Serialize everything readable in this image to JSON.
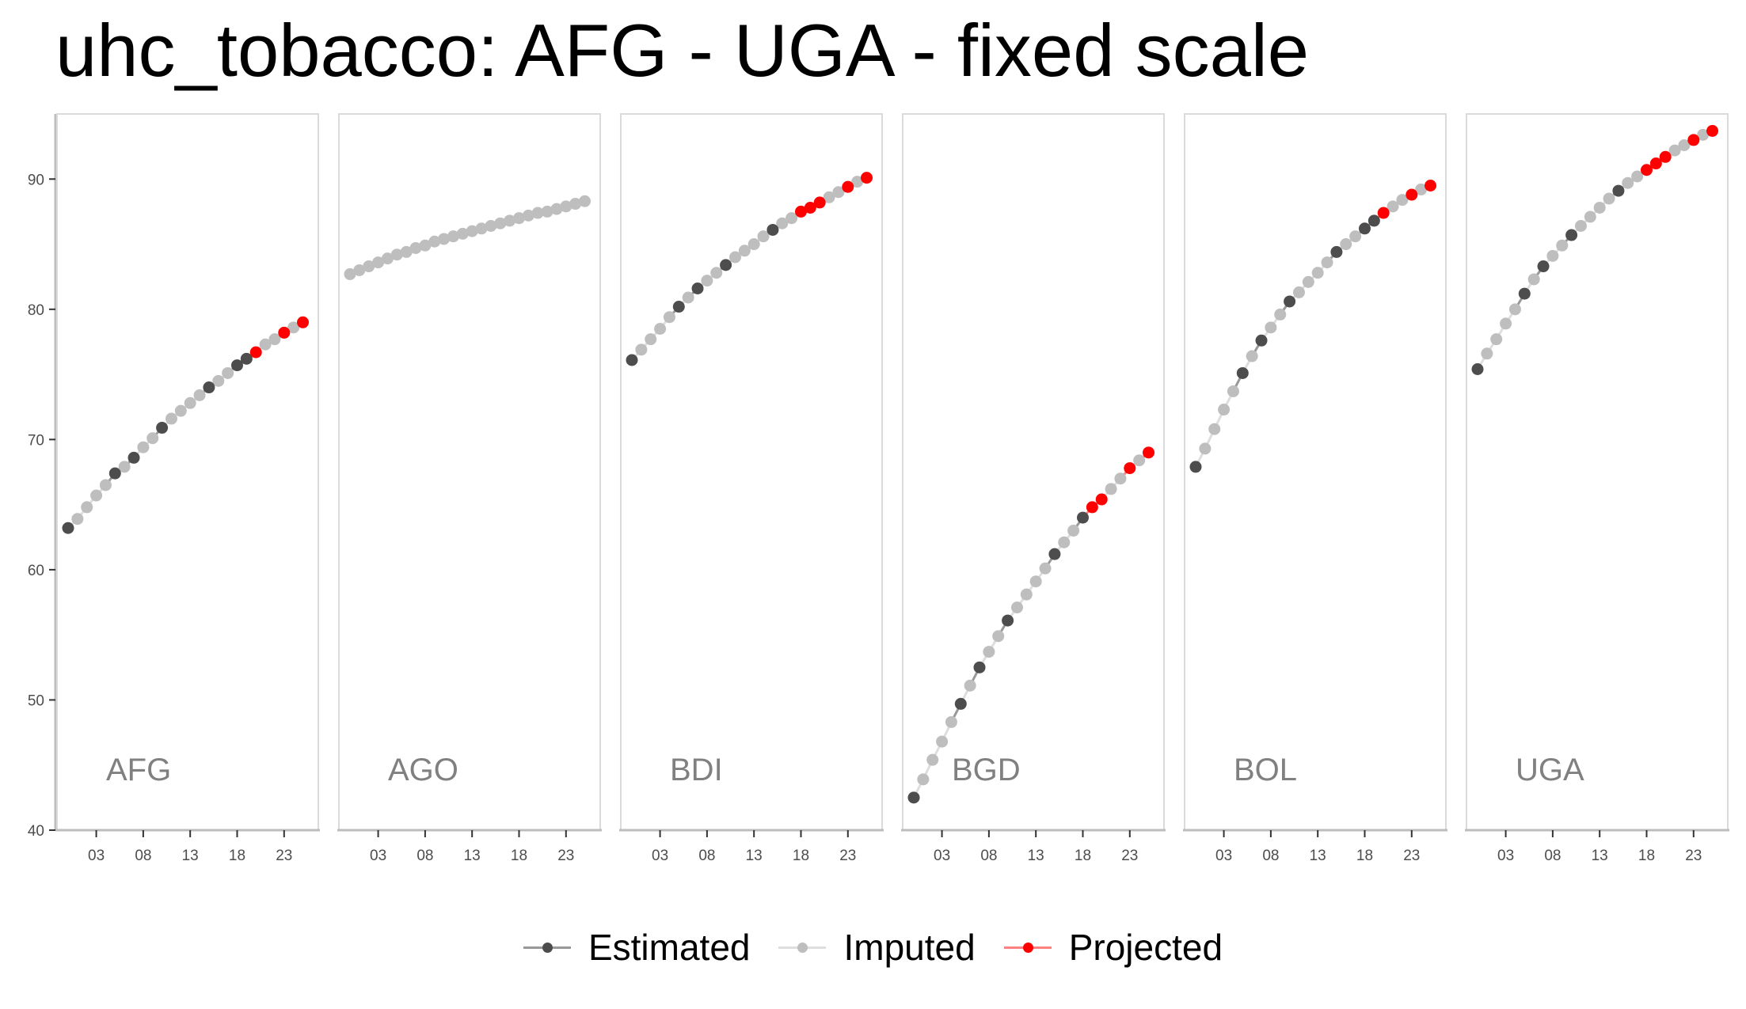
{
  "chart_data": {
    "type": "line",
    "title": "uhc_tobacco: AFG - UGA - fixed scale",
    "ylim": [
      40,
      95
    ],
    "yticks": [
      40,
      50,
      60,
      70,
      80,
      90
    ],
    "xlim": [
      2000,
      2025.8
    ],
    "xticks": [
      2003,
      2008,
      2013,
      2018,
      2023
    ],
    "xtick_labels": [
      "03",
      "08",
      "13",
      "18",
      "23"
    ],
    "grid": false,
    "legend_position": "bottom",
    "x": [
      2000,
      2001,
      2002,
      2003,
      2004,
      2005,
      2006,
      2007,
      2008,
      2009,
      2010,
      2011,
      2012,
      2013,
      2014,
      2015,
      2016,
      2017,
      2018,
      2019,
      2020,
      2021,
      2022,
      2023,
      2024,
      2025
    ],
    "legend": [
      {
        "label": "Estimated",
        "color": "#4d4d4d",
        "line_color": "#999999"
      },
      {
        "label": "Imputed",
        "color": "#bebebe",
        "line_color": "#dedede"
      },
      {
        "label": "Projected",
        "color": "#ff0000",
        "line_color": "#ff8080"
      }
    ],
    "panels": [
      {
        "label": "AFG",
        "values": [
          63.2,
          63.9,
          64.8,
          65.7,
          66.5,
          67.4,
          67.9,
          68.6,
          69.4,
          70.1,
          70.9,
          71.6,
          72.2,
          72.8,
          73.4,
          74.0,
          74.5,
          75.1,
          75.7,
          76.2,
          76.7,
          77.3,
          77.7,
          78.2,
          78.6,
          79.0
        ],
        "status": [
          "E",
          "I",
          "I",
          "I",
          "I",
          "E",
          "I",
          "E",
          "I",
          "I",
          "E",
          "I",
          "I",
          "I",
          "I",
          "E",
          "I",
          "I",
          "E",
          "E",
          "P",
          "I",
          "I",
          "P",
          "I",
          "P"
        ]
      },
      {
        "label": "AGO",
        "values": [
          82.7,
          83.0,
          83.3,
          83.6,
          83.9,
          84.2,
          84.4,
          84.7,
          84.9,
          85.2,
          85.4,
          85.6,
          85.8,
          86.0,
          86.2,
          86.4,
          86.6,
          86.8,
          87.0,
          87.2,
          87.4,
          87.5,
          87.7,
          87.9,
          88.1,
          88.3
        ],
        "status": [
          "I",
          "I",
          "I",
          "I",
          "I",
          "I",
          "I",
          "I",
          "I",
          "I",
          "I",
          "I",
          "I",
          "I",
          "I",
          "I",
          "I",
          "I",
          "I",
          "I",
          "I",
          "I",
          "I",
          "I",
          "I",
          "I"
        ]
      },
      {
        "label": "BDI",
        "values": [
          76.1,
          76.9,
          77.7,
          78.5,
          79.4,
          80.2,
          80.9,
          81.6,
          82.2,
          82.8,
          83.4,
          84.0,
          84.5,
          85.0,
          85.6,
          86.1,
          86.6,
          87.0,
          87.5,
          87.8,
          88.2,
          88.6,
          89.0,
          89.4,
          89.8,
          90.1
        ],
        "status": [
          "E",
          "I",
          "I",
          "I",
          "I",
          "E",
          "I",
          "E",
          "I",
          "I",
          "E",
          "I",
          "I",
          "I",
          "I",
          "E",
          "I",
          "I",
          "P",
          "P",
          "P",
          "I",
          "I",
          "P",
          "I",
          "P"
        ]
      },
      {
        "label": "BGD",
        "values": [
          42.5,
          43.9,
          45.4,
          46.8,
          48.3,
          49.7,
          51.1,
          52.5,
          53.7,
          54.9,
          56.1,
          57.1,
          58.1,
          59.1,
          60.1,
          61.2,
          62.1,
          63.0,
          64.0,
          64.8,
          65.4,
          66.2,
          67.0,
          67.8,
          68.4,
          69.0
        ],
        "status": [
          "E",
          "I",
          "I",
          "I",
          "I",
          "E",
          "I",
          "E",
          "I",
          "I",
          "E",
          "I",
          "I",
          "I",
          "I",
          "E",
          "I",
          "I",
          "E",
          "P",
          "P",
          "I",
          "I",
          "P",
          "I",
          "P"
        ]
      },
      {
        "label": "BOL",
        "values": [
          67.9,
          69.3,
          70.8,
          72.3,
          73.7,
          75.1,
          76.4,
          77.6,
          78.6,
          79.6,
          80.6,
          81.3,
          82.1,
          82.8,
          83.6,
          84.4,
          85.0,
          85.6,
          86.2,
          86.8,
          87.4,
          87.9,
          88.4,
          88.8,
          89.2,
          89.5
        ],
        "status": [
          "E",
          "I",
          "I",
          "I",
          "I",
          "E",
          "I",
          "E",
          "I",
          "I",
          "E",
          "I",
          "I",
          "I",
          "I",
          "E",
          "I",
          "I",
          "E",
          "E",
          "P",
          "I",
          "I",
          "P",
          "I",
          "P"
        ]
      },
      {
        "label": "UGA",
        "values": [
          75.4,
          76.6,
          77.7,
          78.9,
          80.0,
          81.2,
          82.3,
          83.3,
          84.1,
          84.9,
          85.7,
          86.4,
          87.1,
          87.8,
          88.5,
          89.1,
          89.7,
          90.2,
          90.7,
          91.2,
          91.7,
          92.2,
          92.6,
          93.0,
          93.4,
          93.7
        ],
        "status": [
          "E",
          "I",
          "I",
          "I",
          "I",
          "E",
          "I",
          "E",
          "I",
          "I",
          "E",
          "I",
          "I",
          "I",
          "I",
          "E",
          "I",
          "I",
          "P",
          "P",
          "P",
          "I",
          "I",
          "P",
          "I",
          "P"
        ]
      }
    ]
  }
}
